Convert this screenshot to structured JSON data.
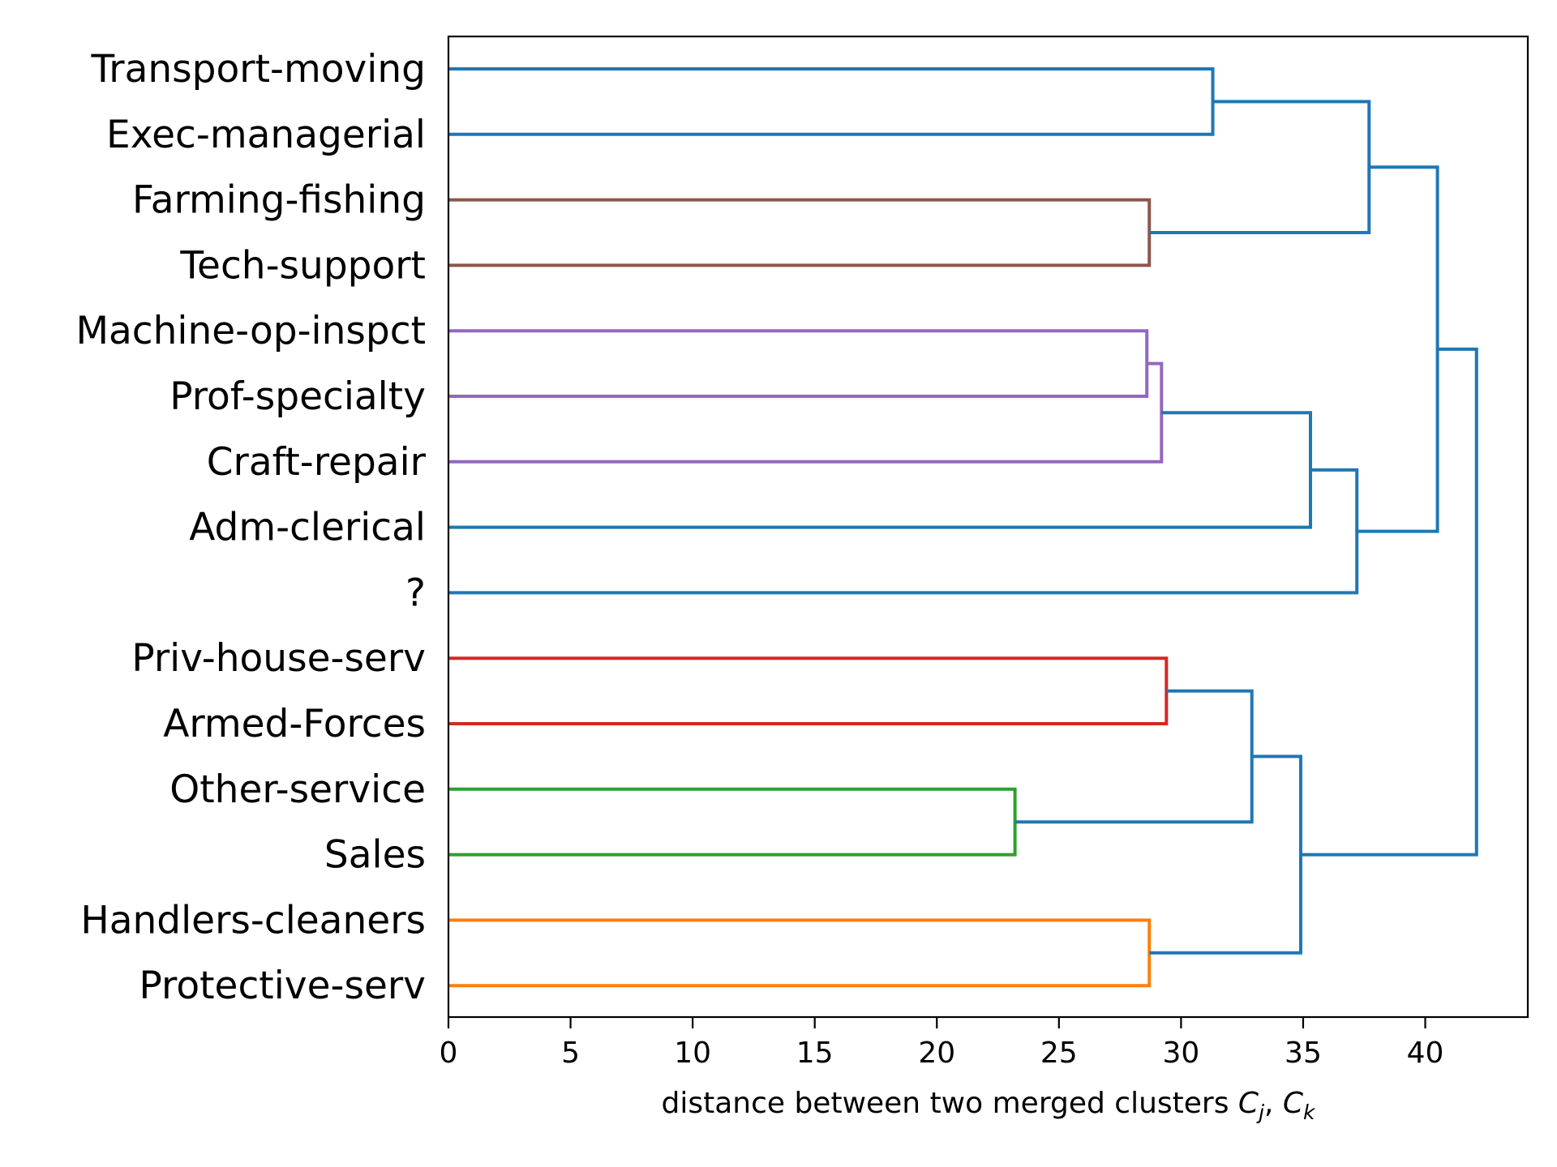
{
  "chart_data": {
    "type": "dendrogram",
    "orientation": "horizontal",
    "xlabel": "distance between two merged clusters C_j, C_k",
    "xlabel_parts": {
      "text": "distance between two merged clusters ",
      "math_1": "C",
      "sub_1": "j",
      "sep": ", ",
      "math_2": "C",
      "sub_2": "k"
    },
    "xlim": [
      0,
      44.2
    ],
    "xticks": [
      0,
      5,
      10,
      15,
      20,
      25,
      30,
      35,
      40
    ],
    "xtick_labels": [
      "0",
      "5",
      "10",
      "15",
      "20",
      "25",
      "30",
      "35",
      "40"
    ],
    "leaves": [
      "Transport-moving",
      "Exec-managerial",
      "Farming-fishing",
      "Tech-support",
      "Machine-op-inspct",
      "Prof-specialty",
      "Craft-repair",
      "Adm-clerical",
      "?",
      "Priv-house-serv",
      "Armed-Forces",
      "Other-service",
      "Sales",
      "Handlers-cleaners",
      "Protective-serv"
    ],
    "colors": {
      "blue": "#1f77b4",
      "orange": "#ff7f0e",
      "green": "#2ca02c",
      "red": "#d62728",
      "purple": "#9467bd",
      "brown": "#8c564b"
    },
    "merges": [
      {
        "id": "m_tm_em",
        "left": "Transport-moving",
        "right": "Exec-managerial",
        "distance": 31.3,
        "color": "blue"
      },
      {
        "id": "m_ff_ts",
        "left": "Farming-fishing",
        "right": "Tech-support",
        "distance": 28.7,
        "color": "brown"
      },
      {
        "id": "m_top4",
        "left": "m_tm_em",
        "right": "m_ff_ts",
        "distance": 37.7,
        "color": "blue"
      },
      {
        "id": "m_mo_ps",
        "left": "Machine-op-inspct",
        "right": "Prof-specialty",
        "distance": 28.6,
        "color": "purple"
      },
      {
        "id": "m_mps_cr",
        "left": "m_mo_ps",
        "right": "Craft-repair",
        "distance": 29.2,
        "color": "purple"
      },
      {
        "id": "m_purple_adm",
        "left": "m_mps_cr",
        "right": "Adm-clerical",
        "distance": 35.3,
        "color": "blue"
      },
      {
        "id": "m_mid_q",
        "left": "m_purple_adm",
        "right": "?",
        "distance": 37.2,
        "color": "blue"
      },
      {
        "id": "m_upper",
        "left": "m_top4",
        "right": "m_mid_q",
        "distance": 40.5,
        "color": "blue"
      },
      {
        "id": "m_ph_af",
        "left": "Priv-house-serv",
        "right": "Armed-Forces",
        "distance": 29.4,
        "color": "red"
      },
      {
        "id": "m_os_sa",
        "left": "Other-service",
        "right": "Sales",
        "distance": 23.2,
        "color": "green"
      },
      {
        "id": "m_red_green",
        "left": "m_ph_af",
        "right": "m_os_sa",
        "distance": 32.9,
        "color": "blue"
      },
      {
        "id": "m_hc_pr",
        "left": "Handlers-cleaners",
        "right": "Protective-serv",
        "distance": 28.7,
        "color": "orange"
      },
      {
        "id": "m_lower",
        "left": "m_red_green",
        "right": "m_hc_pr",
        "distance": 34.9,
        "color": "blue"
      },
      {
        "id": "m_root",
        "left": "m_upper",
        "right": "m_lower",
        "distance": 42.1,
        "color": "blue"
      }
    ]
  }
}
